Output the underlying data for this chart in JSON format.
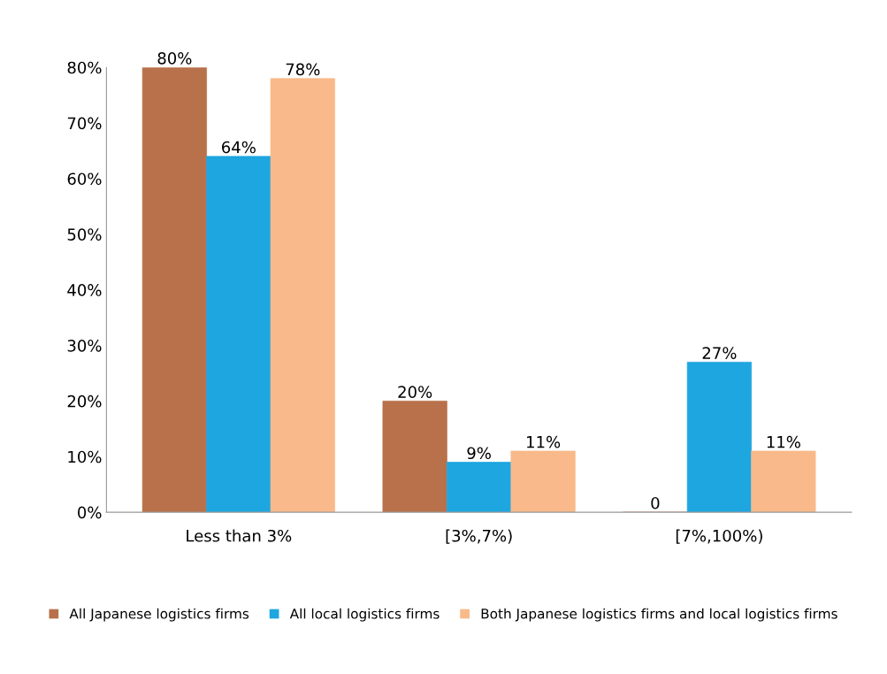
{
  "chart_data": {
    "type": "bar",
    "categories": [
      "Less than 3%",
      "[3%,7%)",
      "[7%,100%)"
    ],
    "series": [
      {
        "name": "All Japanese logistics firms",
        "color": "#b8714a",
        "values": [
          80,
          20,
          0
        ],
        "value_labels": [
          "80%",
          "20%",
          "0"
        ]
      },
      {
        "name": "All local logistics firms",
        "color": "#1ea6e0",
        "values": [
          64,
          9,
          27
        ],
        "value_labels": [
          "64%",
          "9%",
          "27%"
        ]
      },
      {
        "name": "Both Japanese logistics firms and local logistics firms",
        "color": "#f9b98a",
        "values": [
          78,
          11,
          11
        ],
        "value_labels": [
          "78%",
          "11%",
          "11%"
        ]
      }
    ],
    "ylim": [
      0,
      80
    ],
    "yticks": [
      {
        "value": 0,
        "label": "0%"
      },
      {
        "value": 10,
        "label": "10%"
      },
      {
        "value": 20,
        "label": "20%"
      },
      {
        "value": 30,
        "label": "30%"
      },
      {
        "value": 40,
        "label": "40%"
      },
      {
        "value": 50,
        "label": "50%"
      },
      {
        "value": 60,
        "label": "60%"
      },
      {
        "value": 70,
        "label": "70%"
      },
      {
        "value": 80,
        "label": "80%"
      }
    ],
    "grid": false,
    "legend": "bottom"
  }
}
